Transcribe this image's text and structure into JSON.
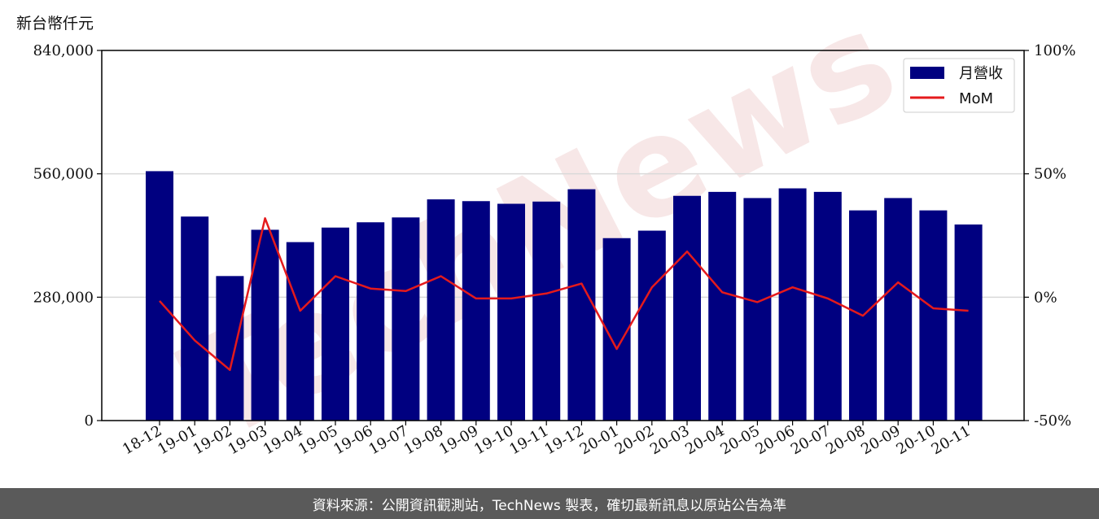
{
  "unit_label": "新台幣仟元",
  "footer": "資料來源：公開資訊觀測站，TechNews 製表，確切最新訊息以原站公告為準",
  "watermark": "TechNews",
  "colors": {
    "bar": "#000080",
    "line": "#e41a1c",
    "grid": "#d9d9d9",
    "watermark": "#f4dede"
  },
  "chart_data": {
    "type": "bar",
    "categories": [
      "18-12",
      "19-01",
      "19-02",
      "19-03",
      "19-04",
      "19-05",
      "19-06",
      "19-07",
      "19-08",
      "19-09",
      "19-10",
      "19-11",
      "19-12",
      "20-01",
      "20-02",
      "20-03",
      "20-04",
      "20-05",
      "20-06",
      "20-07",
      "20-08",
      "20-09",
      "20-10",
      "20-11"
    ],
    "series": [
      {
        "name": "月營收",
        "axis": "left",
        "type": "bar",
        "values": [
          566000,
          463000,
          328000,
          433000,
          405000,
          438000,
          450000,
          461000,
          502000,
          498000,
          492000,
          497000,
          525000,
          414000,
          431000,
          510000,
          519000,
          505000,
          527000,
          519000,
          477000,
          505000,
          477000,
          445000
        ]
      },
      {
        "name": "MoM",
        "axis": "right",
        "type": "line",
        "values": [
          -1.5,
          -17.5,
          -29.5,
          32,
          -5.5,
          8.5,
          3.5,
          2.5,
          8.5,
          -0.5,
          -0.5,
          1.5,
          5.5,
          -21,
          4,
          18.5,
          2,
          -2,
          4,
          -0.5,
          -7.5,
          6,
          -4.5,
          -5.5
        ]
      }
    ],
    "left_axis": {
      "ylim": [
        0,
        840000
      ],
      "ticks": [
        0,
        280000,
        560000,
        840000
      ],
      "tick_labels": [
        "0",
        "280,000",
        "560,000",
        "840,000"
      ]
    },
    "right_axis": {
      "ylim": [
        -50,
        100
      ],
      "ticks": [
        -50,
        0,
        50,
        100
      ],
      "tick_labels": [
        "-50%",
        "0%",
        "50%",
        "100%"
      ]
    },
    "grid": "horizontal",
    "legend": "top-right"
  }
}
